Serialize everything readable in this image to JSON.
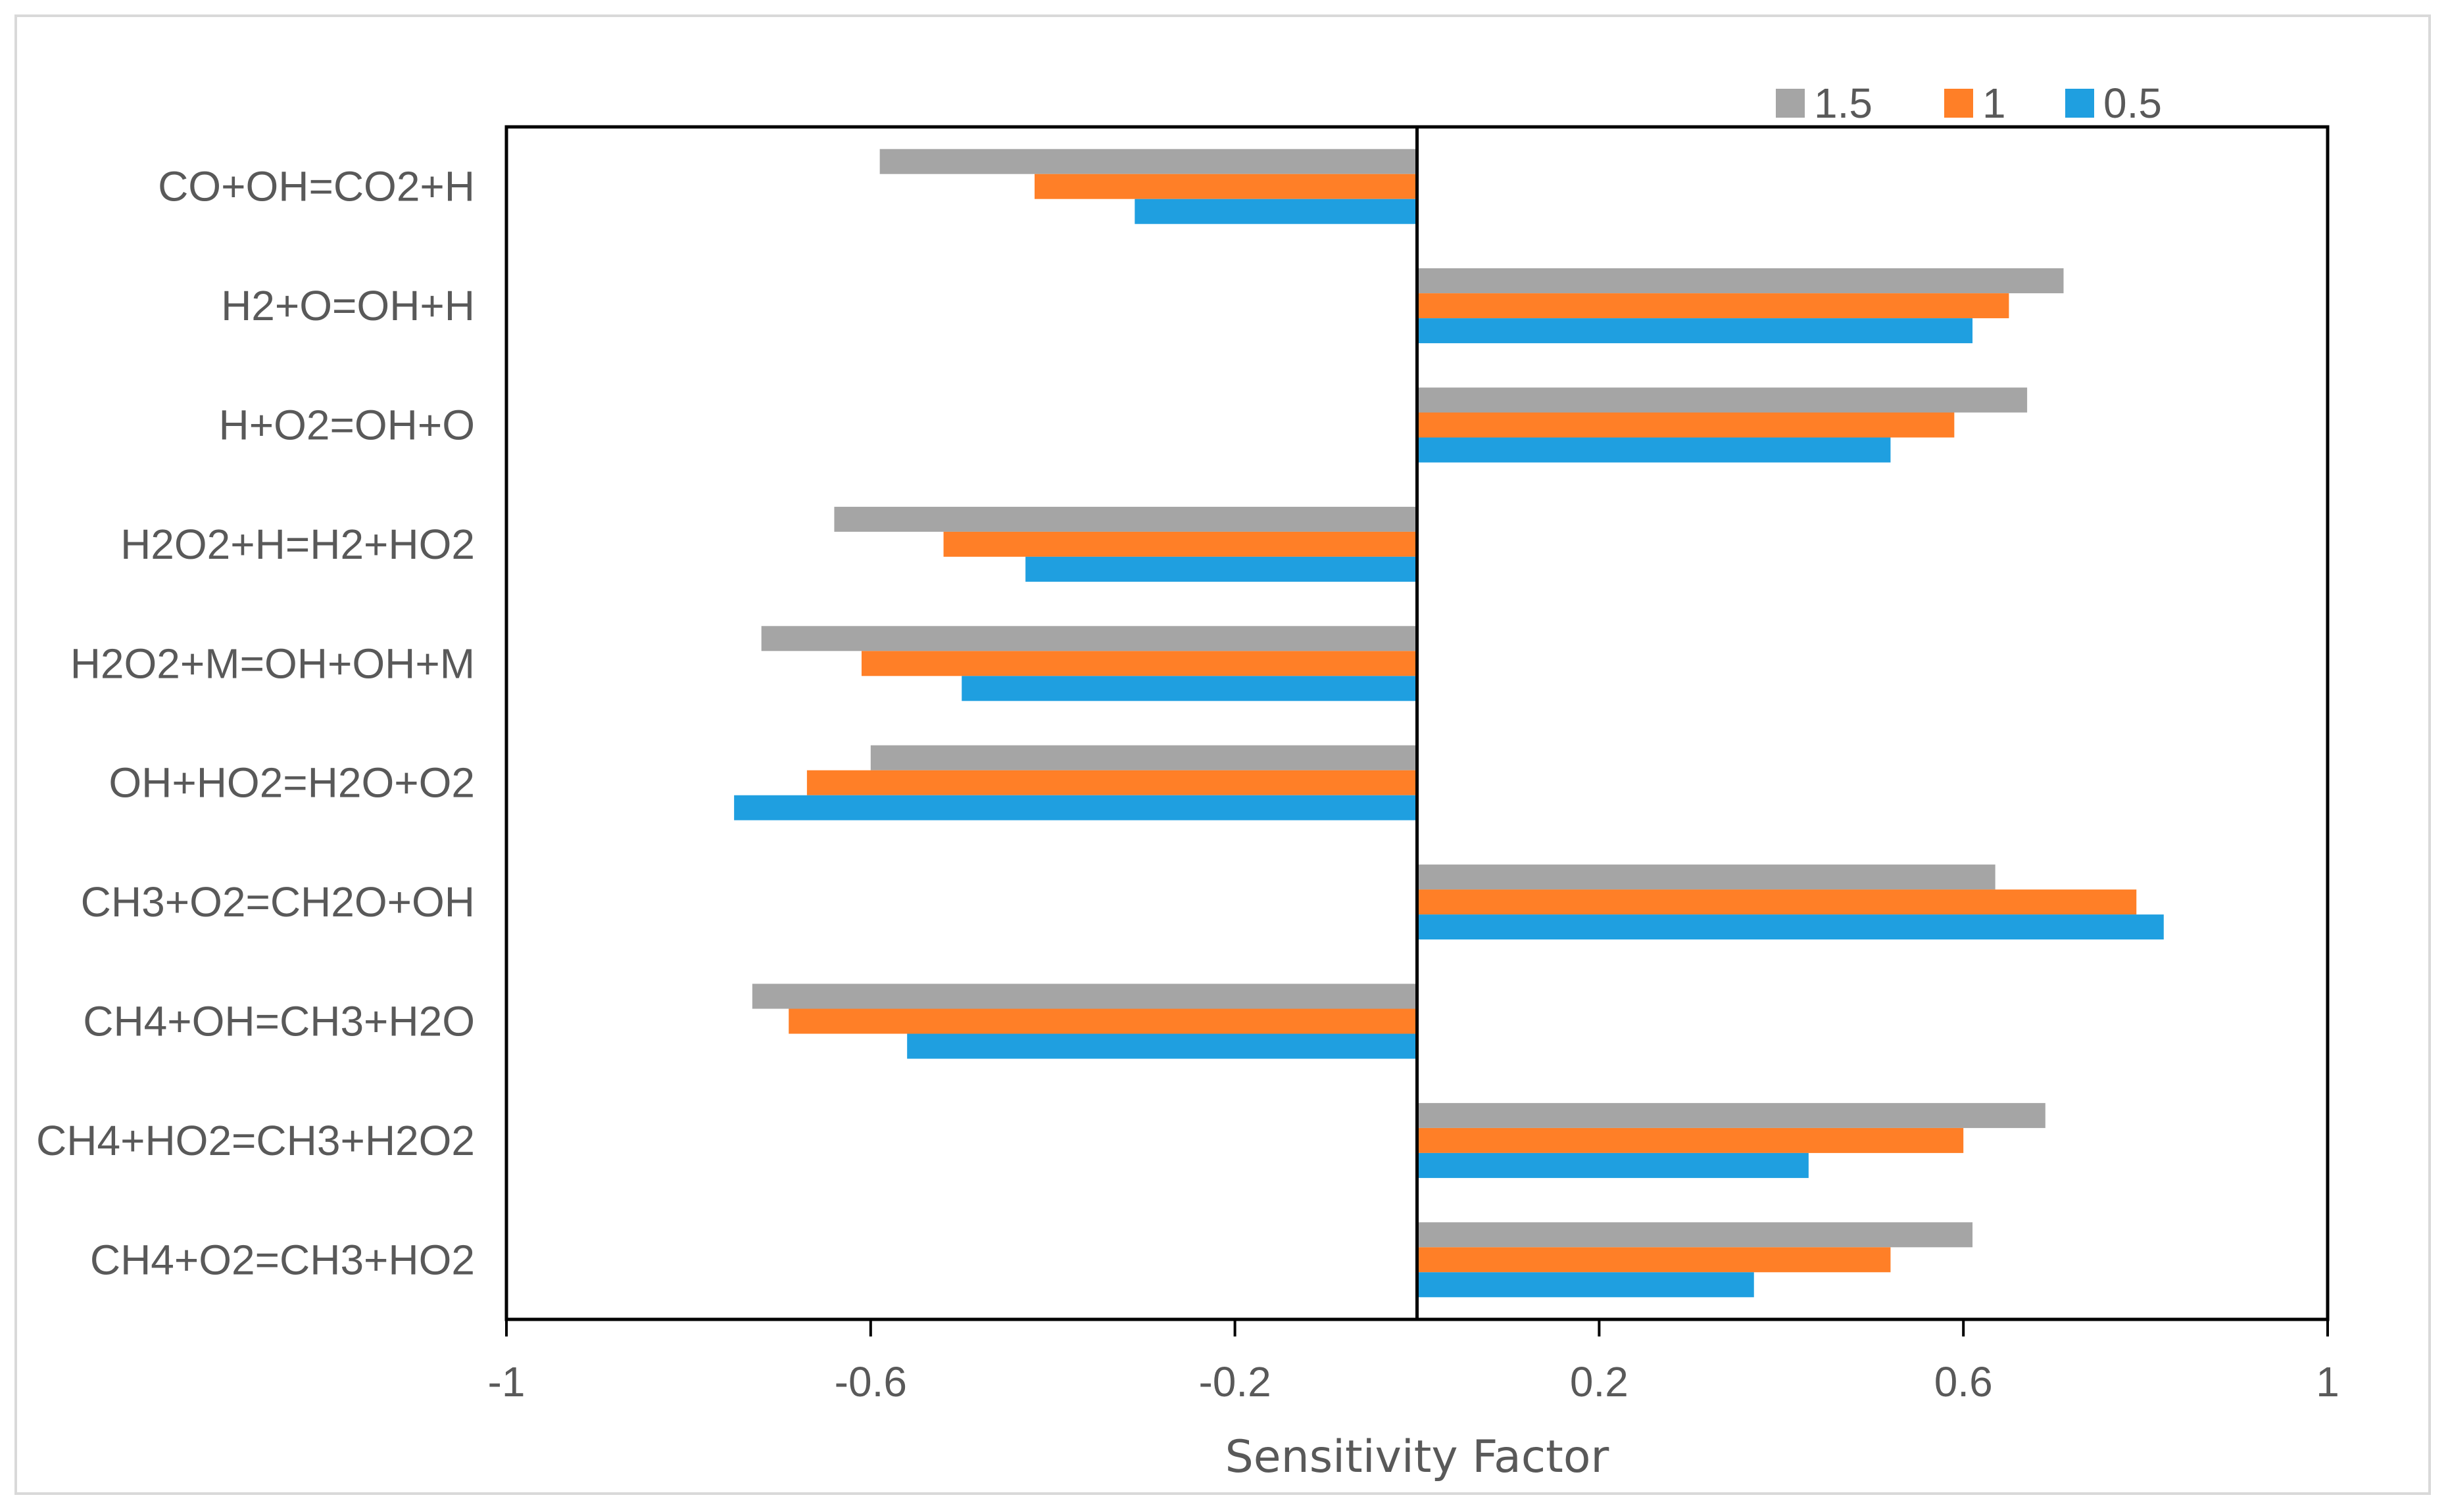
{
  "chart_data": {
    "type": "bar",
    "orientation": "horizontal",
    "title": "",
    "xlabel": "Sensitivity Factor",
    "ylabel": "",
    "xlim": [
      -1,
      1
    ],
    "xticks": [
      -1,
      -0.6,
      -0.2,
      0.2,
      0.6,
      1
    ],
    "xtick_labels": [
      "-1",
      "-0.6",
      "-0.2",
      "0.2",
      "0.6",
      "1"
    ],
    "grid": false,
    "legend_position": "top-right",
    "categories": [
      "CO+OH=CO2+H",
      "H2+O=OH+H",
      "H+O2=OH+O",
      "H2O2+H=H2+HO2",
      "H2O2+M=OH+OH+M",
      "OH+HO2=H2O+O2",
      "CH3+O2=CH2O+OH",
      "CH4+OH=CH3+H2O",
      "CH4+HO2=CH3+H2O2",
      "CH4+O2=CH3+HO2"
    ],
    "series": [
      {
        "name": "1.5",
        "color": "#a5a5a5",
        "values": [
          -0.59,
          0.71,
          0.67,
          -0.64,
          -0.72,
          -0.6,
          0.635,
          -0.73,
          0.69,
          0.61
        ]
      },
      {
        "name": "1",
        "color": "#ff7f27",
        "values": [
          -0.42,
          0.65,
          0.59,
          -0.52,
          -0.61,
          -0.67,
          0.79,
          -0.69,
          0.6,
          0.52
        ]
      },
      {
        "name": "0.5",
        "color": "#1f9fe0",
        "values": [
          -0.31,
          0.61,
          0.52,
          -0.43,
          -0.5,
          -0.75,
          0.82,
          -0.56,
          0.43,
          0.37
        ]
      }
    ]
  }
}
